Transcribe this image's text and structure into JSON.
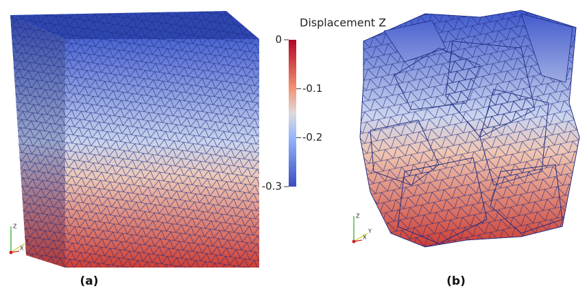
{
  "colorbar": {
    "title": "Displacement Z",
    "range": [
      -0.3,
      0
    ],
    "ticks": [
      0,
      -0.1,
      -0.2,
      -0.3
    ]
  },
  "panels": [
    {
      "label": "(a)",
      "triad": [
        "Z",
        "Y",
        "X"
      ]
    },
    {
      "label": "(b)",
      "triad": [
        "Z",
        "Y",
        "X"
      ]
    }
  ]
}
